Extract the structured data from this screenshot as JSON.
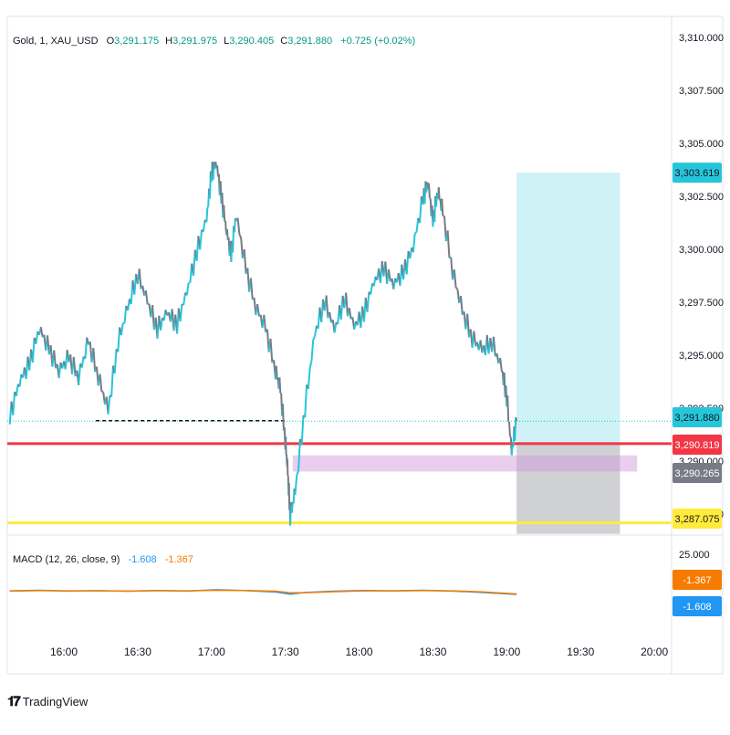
{
  "legend": {
    "symbol": "Gold, 1, XAU_USD",
    "o_label": "O",
    "o_value": "3,291.175",
    "h_label": "H",
    "h_value": "3,291.975",
    "l_label": "L",
    "l_value": "3,290.405",
    "c_label": "C",
    "c_value": "3,291.880",
    "change": "+0.725 (+0.02%)"
  },
  "macd_legend": {
    "name": "MACD (12, 26, close, 9)",
    "value1": "-1.608",
    "value2": "-1.367"
  },
  "price_badges": [
    {
      "label": "3,303.619",
      "value": 3303.619,
      "color": "#26c6da",
      "text_color": "#131722"
    },
    {
      "label": "3,291.880",
      "value": 3291.88,
      "color": "#26c6da",
      "text_color": "#131722"
    },
    {
      "label": "3,290.819",
      "value": 3290.819,
      "color": "#f23645",
      "text_color": "#ffffff"
    },
    {
      "label": "3,290.265",
      "value": 3290.265,
      "color": "#787b86",
      "text_color": "#ffffff"
    },
    {
      "label": "3,287.075",
      "value": 3287.075,
      "color": "#ffeb3b",
      "text_color": "#131722"
    }
  ],
  "macd_badges": [
    {
      "label": "-1.367",
      "value": -1.367,
      "color": "#f57c00",
      "text_color": "#ffffff"
    },
    {
      "label": "-1.608",
      "value": -1.608,
      "color": "#2196f3",
      "text_color": "#ffffff"
    }
  ],
  "macd_axis_label": "25.000",
  "brand": {
    "logo": "𝟏𝟕",
    "name": "TradingView"
  },
  "chart_data": {
    "type": "line",
    "title": "Gold, 1, XAU_USD",
    "y_axis": {
      "ticks": [
        "3,310.000",
        "3,307.500",
        "3,305.000",
        "3,302.500",
        "3,300.000",
        "3,297.500",
        "3,295.000",
        "3,292.500",
        "3,290.000",
        "3,287.500"
      ],
      "tick_values": [
        3310,
        3307.5,
        3305,
        3302.5,
        3300,
        3297.5,
        3295,
        3292.5,
        3290,
        3287.5
      ],
      "range": [
        3286.5,
        3311.0
      ]
    },
    "x_axis": {
      "ticks": [
        "16:00",
        "16:30",
        "17:00",
        "17:30",
        "18:00",
        "18:30",
        "19:00",
        "19:30",
        "20:00"
      ],
      "tick_minutes": [
        960,
        990,
        1020,
        1050,
        1080,
        1110,
        1140,
        1170,
        1200
      ],
      "range_minutes": [
        937,
        1207
      ]
    },
    "series": [
      {
        "x_minutes": [
          938,
          942,
          946,
          950,
          954,
          958,
          962,
          966,
          970,
          974,
          978,
          982,
          986,
          990,
          994,
          998,
          1002,
          1006,
          1010,
          1014,
          1018,
          1020,
          1022,
          1024,
          1026,
          1028,
          1030,
          1034,
          1038,
          1042,
          1046,
          1048,
          1050,
          1051,
          1052,
          1054,
          1058,
          1062,
          1066,
          1070,
          1074,
          1078,
          1082,
          1086,
          1090,
          1094,
          1098,
          1102,
          1106,
          1108,
          1110,
          1112,
          1114,
          1118,
          1122,
          1126,
          1130,
          1134,
          1138,
          1140,
          1142,
          1144
        ],
        "values": [
          3292.0,
          3293.8,
          3294.5,
          3296.3,
          3295.2,
          3294.3,
          3294.8,
          3294.0,
          3295.6,
          3294.0,
          3292.3,
          3295.6,
          3297.2,
          3298.8,
          3297.5,
          3296.2,
          3297.0,
          3296.4,
          3298.0,
          3299.8,
          3301.5,
          3303.5,
          3304.1,
          3302.4,
          3301.0,
          3299.6,
          3301.7,
          3299.0,
          3297.3,
          3296.2,
          3294.3,
          3293.3,
          3291.0,
          3289.4,
          3287.4,
          3288.5,
          3292.5,
          3296.0,
          3297.5,
          3296.2,
          3297.6,
          3296.4,
          3296.9,
          3298.5,
          3299.0,
          3298.4,
          3298.8,
          3300.2,
          3302.3,
          3303.2,
          3301.2,
          3302.8,
          3301.7,
          3299.0,
          3297.0,
          3295.8,
          3295.2,
          3295.6,
          3294.3,
          3293.0,
          3290.4,
          3291.9
        ],
        "color": "#26a69a"
      }
    ],
    "horizontal_lines": [
      {
        "value": 3290.819,
        "color": "#f23645"
      },
      {
        "value": 3287.075,
        "color": "#ffeb3b"
      },
      {
        "value": 3291.88,
        "color": "#26c6da",
        "style": "dotted"
      }
    ],
    "dashed_segment": {
      "x_start": 973,
      "x_end": 1050,
      "value": 3291.9
    },
    "zones": {
      "position_start_min": 1144,
      "position_end_min": 1186,
      "profit_top": 3303.619,
      "profit_bottom": 3290.819,
      "loss_top": 3290.819,
      "loss_bottom": 3287.075,
      "purple_start_min": 1053,
      "purple_end_min": 1193,
      "purple_top": 3290.265,
      "purple_bottom": 3289.5
    },
    "macd": {
      "x_minutes": [
        938,
        950,
        962,
        974,
        986,
        998,
        1010,
        1022,
        1034,
        1046,
        1052,
        1058,
        1070,
        1082,
        1094,
        1106,
        1118,
        1130,
        1144
      ],
      "macd": [
        0.2,
        0.5,
        0.1,
        0.3,
        0.0,
        0.4,
        0.1,
        0.8,
        0.3,
        -0.4,
        -1.5,
        -0.6,
        0.0,
        0.4,
        0.2,
        0.5,
        0.1,
        -0.6,
        -1.608
      ],
      "signal": [
        0.1,
        0.3,
        0.2,
        0.2,
        0.1,
        0.3,
        0.2,
        0.5,
        0.4,
        0.0,
        -0.8,
        -0.7,
        -0.2,
        0.2,
        0.2,
        0.3,
        0.2,
        -0.3,
        -1.367
      ],
      "range": [
        -15,
        28
      ]
    }
  }
}
